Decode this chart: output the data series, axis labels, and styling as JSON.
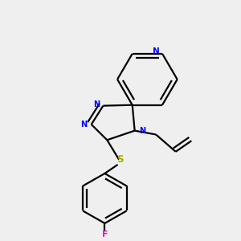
{
  "bg_color": "#efefef",
  "bond_color": "#000000",
  "N_color": "#0000ff",
  "S_color": "#aaaa00",
  "F_color": "#ff00cc",
  "line_width": 1.6,
  "dbo": 0.018,
  "figsize": [
    3.0,
    3.0
  ],
  "dpi": 100,
  "xlim": [
    0.0,
    1.0
  ],
  "ylim": [
    0.0,
    1.0
  ]
}
